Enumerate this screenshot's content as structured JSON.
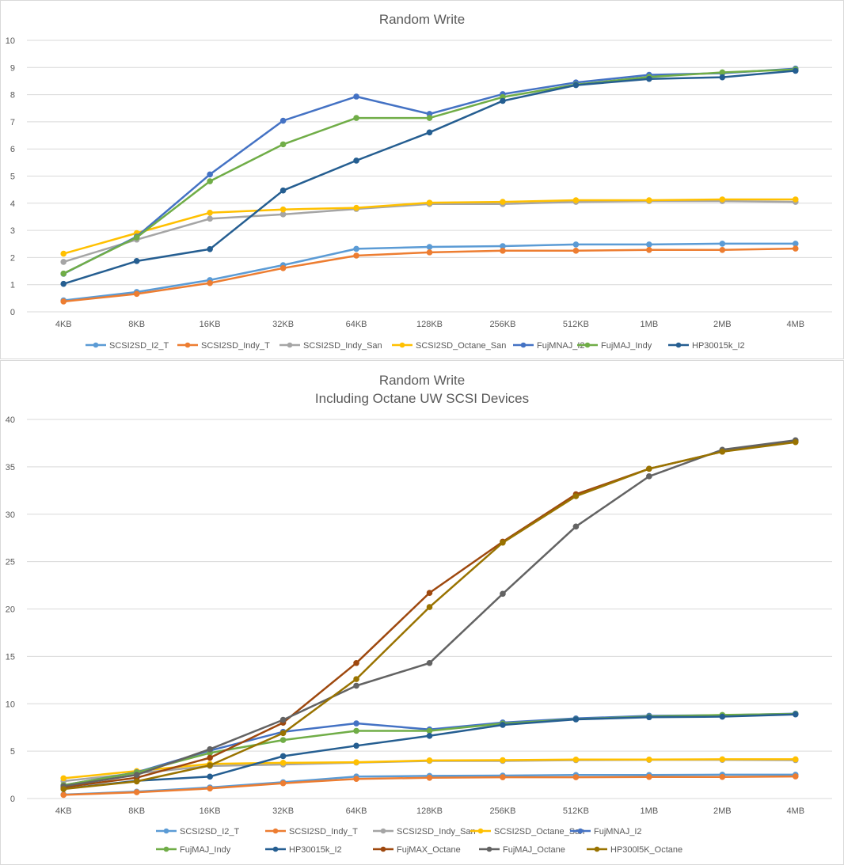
{
  "chart_data": [
    {
      "type": "line",
      "title": "Random Write",
      "subtitle": "",
      "xlabel": "",
      "ylabel": "",
      "categories": [
        "4KB",
        "8KB",
        "16KB",
        "32KB",
        "64KB",
        "128KB",
        "256KB",
        "512KB",
        "1MB",
        "2MB",
        "4MB"
      ],
      "ylim": [
        0,
        10
      ],
      "yticks": [
        0,
        1,
        2,
        3,
        4,
        5,
        6,
        7,
        8,
        9,
        10
      ],
      "grid": true,
      "legend_position": "bottom",
      "series": [
        {
          "name": "SCSI2SD_I2_T",
          "color": "#5b9bd5",
          "values": [
            0.42,
            0.73,
            1.17,
            1.72,
            2.32,
            2.39,
            2.42,
            2.48,
            2.48,
            2.51,
            2.51
          ]
        },
        {
          "name": "SCSI2SD_Indy_T",
          "color": "#ed7d31",
          "values": [
            0.38,
            0.66,
            1.06,
            1.61,
            2.07,
            2.19,
            2.25,
            2.25,
            2.28,
            2.28,
            2.33
          ]
        },
        {
          "name": "SCSI2SD_Indy_San",
          "color": "#a5a5a5",
          "values": [
            1.84,
            2.66,
            3.43,
            3.59,
            3.79,
            3.97,
            3.97,
            4.05,
            4.08,
            4.08,
            4.05
          ]
        },
        {
          "name": "SCSI2SD_Octane_San",
          "color": "#ffc000",
          "values": [
            2.14,
            2.9,
            3.65,
            3.77,
            3.83,
            4.02,
            4.05,
            4.11,
            4.11,
            4.14,
            4.14
          ]
        },
        {
          "name": "FujMNAJ_I2",
          "color": "#4472c4",
          "values": [
            1.4,
            2.77,
            5.06,
            7.04,
            7.93,
            7.29,
            8.02,
            8.45,
            8.73,
            8.79,
            8.96
          ]
        },
        {
          "name": "FujMAJ_Indy",
          "color": "#70ad47",
          "values": [
            1.41,
            2.74,
            4.81,
            6.17,
            7.14,
            7.14,
            7.91,
            8.37,
            8.65,
            8.82,
            8.93
          ]
        },
        {
          "name": "HP30015k_I2",
          "color": "#255e91",
          "values": [
            1.03,
            1.87,
            2.31,
            4.47,
            5.57,
            6.61,
            7.77,
            8.35,
            8.58,
            8.64,
            8.88
          ]
        }
      ]
    },
    {
      "type": "line",
      "title": "Random Write",
      "subtitle": "Including Octane UW SCSI Devices",
      "xlabel": "",
      "ylabel": "",
      "categories": [
        "4KB",
        "8KB",
        "16KB",
        "32KB",
        "64KB",
        "128KB",
        "256KB",
        "512KB",
        "1MB",
        "2MB",
        "4MB"
      ],
      "ylim": [
        0,
        40
      ],
      "yticks": [
        0,
        5,
        10,
        15,
        20,
        25,
        30,
        35,
        40
      ],
      "grid": true,
      "legend_position": "bottom",
      "series": [
        {
          "name": "SCSI2SD_I2_T",
          "color": "#5b9bd5",
          "values": [
            0.42,
            0.73,
            1.17,
            1.72,
            2.32,
            2.39,
            2.42,
            2.48,
            2.48,
            2.51,
            2.51
          ]
        },
        {
          "name": "SCSI2SD_Indy_T",
          "color": "#ed7d31",
          "values": [
            0.38,
            0.66,
            1.06,
            1.61,
            2.07,
            2.19,
            2.25,
            2.25,
            2.28,
            2.28,
            2.33
          ]
        },
        {
          "name": "SCSI2SD_Indy_San",
          "color": "#a5a5a5",
          "values": [
            1.84,
            2.66,
            3.43,
            3.59,
            3.79,
            3.97,
            3.97,
            4.05,
            4.08,
            4.08,
            4.05
          ]
        },
        {
          "name": "SCSI2SD_Octane_San",
          "color": "#ffc000",
          "values": [
            2.14,
            2.9,
            3.65,
            3.77,
            3.83,
            4.02,
            4.05,
            4.11,
            4.11,
            4.14,
            4.14
          ]
        },
        {
          "name": "FujMNAJ_I2",
          "color": "#4472c4",
          "values": [
            1.4,
            2.77,
            5.06,
            7.04,
            7.93,
            7.29,
            8.02,
            8.45,
            8.73,
            8.79,
            8.96
          ]
        },
        {
          "name": "FujMAJ_Indy",
          "color": "#70ad47",
          "values": [
            1.41,
            2.74,
            4.81,
            6.17,
            7.14,
            7.14,
            7.91,
            8.37,
            8.65,
            8.82,
            8.93
          ]
        },
        {
          "name": "HP30015k_I2",
          "color": "#255e91",
          "values": [
            1.03,
            1.87,
            2.31,
            4.47,
            5.57,
            6.61,
            7.77,
            8.35,
            8.58,
            8.64,
            8.88
          ]
        },
        {
          "name": "FujMAX_Octane",
          "color": "#9e480e",
          "values": [
            1.2,
            2.2,
            4.3,
            8.0,
            14.3,
            21.7,
            27.1,
            32.1,
            34.8,
            36.6,
            37.7
          ]
        },
        {
          "name": "FujMAJ_Octane",
          "color": "#636363",
          "values": [
            1.3,
            2.5,
            5.2,
            8.3,
            11.9,
            14.3,
            21.6,
            28.7,
            34.0,
            36.8,
            37.8
          ]
        },
        {
          "name": "HP300l5K_Octane",
          "color": "#997300",
          "values": [
            1.0,
            1.8,
            3.5,
            6.9,
            12.6,
            20.2,
            27.0,
            31.9,
            34.8,
            36.6,
            37.6
          ]
        }
      ]
    }
  ]
}
